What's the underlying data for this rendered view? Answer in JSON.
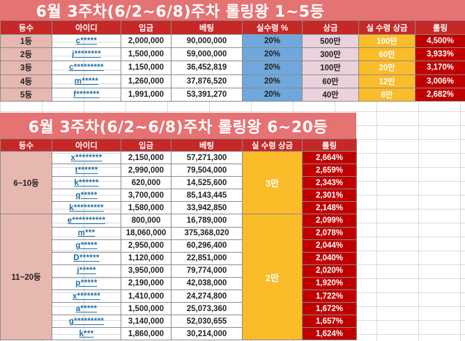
{
  "table1": {
    "title": "6월 3주차(6/2~6/8)주차 롤링왕 1~5등",
    "headers": [
      "등수",
      "아이디",
      "입금",
      "베팅",
      "실수령 %",
      "상금",
      "실 수령 상금",
      "롤링"
    ],
    "rows": [
      {
        "rank": "1등",
        "id": "c*****",
        "deposit": "2,000,000",
        "bet": "90,000,000",
        "rate": "20%",
        "prize": "500만",
        "real": "100만",
        "rolling": "4,500%"
      },
      {
        "rank": "2등",
        "id": "j********",
        "deposit": "1,500,000",
        "bet": "59,000,000",
        "rate": "20%",
        "prize": "300만",
        "real": "60만",
        "rolling": "3,933%"
      },
      {
        "rank": "3등",
        "id": "c*********",
        "deposit": "1,150,000",
        "bet": "36,452,819",
        "rate": "20%",
        "prize": "100만",
        "real": "20만",
        "rolling": "3,170%"
      },
      {
        "rank": "4등",
        "id": "m*****",
        "deposit": "1,260,000",
        "bet": "37,876,520",
        "rate": "20%",
        "prize": "60만",
        "real": "12만",
        "rolling": "3,006%"
      },
      {
        "rank": "5등",
        "id": "f*******",
        "deposit": "1,991,000",
        "bet": "53,391,270",
        "rate": "20%",
        "prize": "40만",
        "real": "8만",
        "rolling": "2,682%"
      }
    ]
  },
  "table2": {
    "title": "6월 3주차(6/2~6/8)주차 롤링왕 6~20등",
    "headers": [
      "등수",
      "아이디",
      "입금",
      "베팅",
      "실 수령 상금",
      "롤링"
    ],
    "group1": {
      "rank": "6~10등",
      "real": "3만",
      "rows": [
        {
          "id": "x********",
          "deposit": "2,150,000",
          "bet": "57,271,300",
          "rolling": "2,664%"
        },
        {
          "id": "t******",
          "deposit": "2,990,000",
          "bet": "79,504,000",
          "rolling": "2,659%"
        },
        {
          "id": "k******",
          "deposit": "620,000",
          "bet": "14,525,600",
          "rolling": "2,343%"
        },
        {
          "id": "q*****",
          "deposit": "3,700,000",
          "bet": "85,143,445",
          "rolling": "2,301%"
        },
        {
          "id": "k*********",
          "deposit": "1,580,000",
          "bet": "33,942,850",
          "rolling": "2,148%"
        }
      ]
    },
    "group2": {
      "rank": "11~20등",
      "real": "2만",
      "rows": [
        {
          "id": "e**********",
          "deposit": "800,000",
          "bet": "16,789,000",
          "rolling": "2,099%"
        },
        {
          "id": "m***",
          "deposit": "18,060,000",
          "bet": "375,368,020",
          "rolling": "2,078%"
        },
        {
          "id": "g*****",
          "deposit": "2,950,000",
          "bet": "60,296,400",
          "rolling": "2,044%"
        },
        {
          "id": "D******",
          "deposit": "1,120,000",
          "bet": "22,851,000",
          "rolling": "2,040%"
        },
        {
          "id": "j*****",
          "deposit": "3,950,000",
          "bet": "79,774,000",
          "rolling": "2,020%"
        },
        {
          "id": "p*****",
          "deposit": "2,190,000",
          "bet": "42,038,000",
          "rolling": "1,920%"
        },
        {
          "id": "x*******",
          "deposit": "1,410,000",
          "bet": "24,274,800",
          "rolling": "1,722%"
        },
        {
          "id": "a*****",
          "deposit": "1,500,000",
          "bet": "25,073,360",
          "rolling": "1,672%"
        },
        {
          "id": "g*********",
          "deposit": "3,140,000",
          "bet": "52,030,655",
          "rolling": "1,657%"
        },
        {
          "id": "k***",
          "deposit": "1,860,000",
          "bet": "30,214,000",
          "rolling": "1,624%"
        }
      ]
    }
  }
}
